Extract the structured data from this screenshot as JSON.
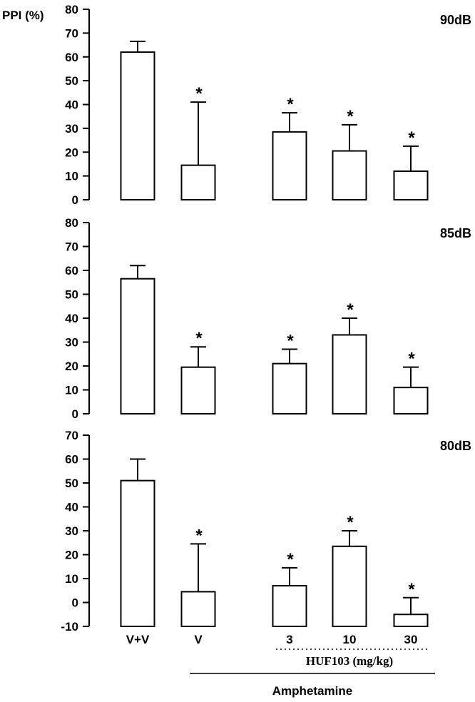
{
  "figure": {
    "y_axis_label": "PPI (%)",
    "x_labels": [
      "V+V",
      "V",
      "3",
      "10",
      "30"
    ],
    "group_label": "HUF103 (mg/kg)",
    "treatment_label": "Amphetamine",
    "significance_marker": "*"
  },
  "chart_data": [
    {
      "type": "bar",
      "title": "90dB",
      "categories": [
        "V+V",
        "V",
        "3",
        "10",
        "30"
      ],
      "values": [
        62,
        14.5,
        28.5,
        20.5,
        12
      ],
      "error": [
        4.5,
        26.5,
        8,
        11,
        10.5
      ],
      "significant": [
        false,
        true,
        true,
        true,
        true
      ],
      "ylim": [
        0,
        80
      ],
      "yticks": [
        0,
        10,
        20,
        30,
        40,
        50,
        60,
        70,
        80
      ],
      "ylabel": "PPI (%)"
    },
    {
      "type": "bar",
      "title": "85dB",
      "categories": [
        "V+V",
        "V",
        "3",
        "10",
        "30"
      ],
      "values": [
        56.5,
        19.5,
        21,
        33,
        11
      ],
      "error": [
        5.5,
        8.5,
        6,
        7,
        8.5
      ],
      "significant": [
        false,
        true,
        true,
        true,
        true
      ],
      "ylim": [
        0,
        80
      ],
      "yticks": [
        0,
        10,
        20,
        30,
        40,
        50,
        60,
        70,
        80
      ],
      "ylabel": ""
    },
    {
      "type": "bar",
      "title": "80dB",
      "categories": [
        "V+V",
        "V",
        "3",
        "10",
        "30"
      ],
      "values": [
        51,
        4.5,
        7,
        23.5,
        -5
      ],
      "error": [
        9,
        20,
        7.5,
        6.5,
        7
      ],
      "significant": [
        false,
        true,
        true,
        true,
        true
      ],
      "ylim": [
        -10,
        70
      ],
      "yticks": [
        -10,
        0,
        10,
        20,
        30,
        40,
        50,
        60,
        70
      ],
      "ylabel": ""
    }
  ]
}
